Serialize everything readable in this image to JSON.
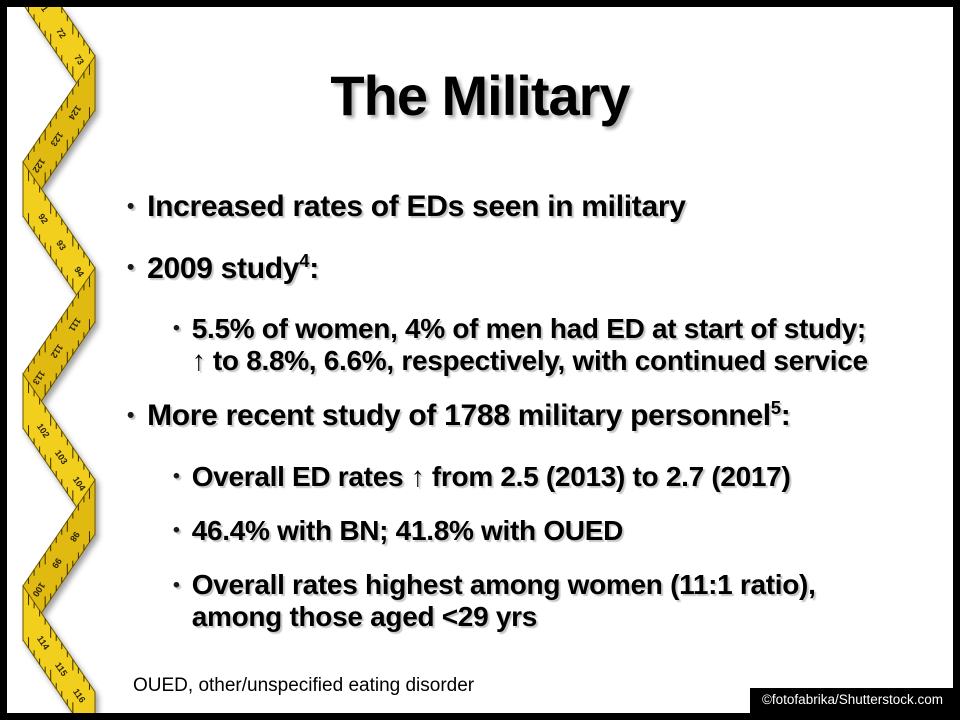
{
  "slide": {
    "title": "The Military",
    "footnote": "OUED, other/unspecified eating disorder",
    "credit": "©fotofabrika/Shutterstock.com",
    "colors": {
      "background": "#ffffff",
      "frame": "#000000",
      "text": "#000000",
      "credit_bg": "#000000",
      "credit_text": "#ffffff"
    }
  },
  "bullets": [
    {
      "level": 1,
      "segments": [
        {
          "t": "Increased rates of EDs seen in military"
        }
      ]
    },
    {
      "level": 1,
      "segments": [
        {
          "t": "2009 study"
        },
        {
          "t": "4",
          "sup": true
        },
        {
          "t": ":"
        }
      ]
    },
    {
      "level": 2,
      "segments": [
        {
          "t": "5.5% of women, 4% of men had ED at start of study;"
        },
        {
          "br": true
        },
        {
          "t": "↑ to 8.8%, 6.6%, respectively, with continued service"
        }
      ]
    },
    {
      "level": 1,
      "segments": [
        {
          "t": "More recent study of 1788 military personnel"
        },
        {
          "t": "5",
          "sup": true
        },
        {
          "t": ":"
        }
      ]
    },
    {
      "level": 2,
      "segments": [
        {
          "t": "Overall ED rates ↑ from 2.5 (2013) to 2.7 (2017)"
        }
      ]
    },
    {
      "level": 2,
      "segments": [
        {
          "t": "46.4% with BN; 41.8% with OUED"
        }
      ]
    },
    {
      "level": 2,
      "segments": [
        {
          "t": "Overall rates highest among women (11:1 ratio),"
        },
        {
          "br": true
        },
        {
          "t": "among those aged <29 yrs"
        }
      ]
    }
  ],
  "tape": {
    "numbers": [
      "71",
      "72",
      "73",
      "124",
      "123",
      "122",
      "92",
      "93",
      "94",
      "111",
      "112",
      "113",
      "102",
      "103",
      "104",
      "98",
      "99",
      "100",
      "114",
      "115",
      "116"
    ],
    "colors": {
      "face": "#f2cf1d",
      "back": "#e0ba10",
      "edge": "#6b5900",
      "tick": "#3a3000"
    }
  }
}
